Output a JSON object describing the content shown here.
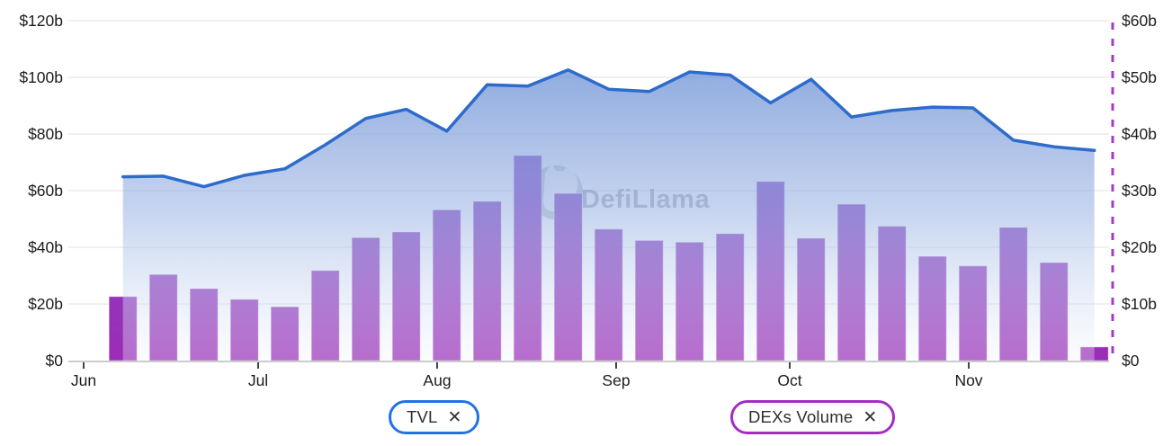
{
  "watermark": {
    "text": "DefiLlama"
  },
  "legend": [
    {
      "label": "TVL",
      "close_icon": "✕",
      "color": "#2172e5"
    },
    {
      "label": "DEXs Volume",
      "close_icon": "✕",
      "color": "#a32cc4"
    }
  ],
  "chart_data": {
    "type": "combo (area line + bar)",
    "x_tick_labels": [
      "Jun",
      "Jul",
      "Aug",
      "Sep",
      "Oct",
      "Nov"
    ],
    "left_axis": {
      "tick_labels": [
        "$120b",
        "$100b",
        "$80b",
        "$60b",
        "$40b",
        "$20b",
        "$0"
      ],
      "min": 0,
      "max": 120,
      "unit": "$ billions",
      "series": "TVL"
    },
    "right_axis": {
      "tick_labels": [
        "$60b",
        "$50b",
        "$40b",
        "$30b",
        "$20b",
        "$10b",
        "$0"
      ],
      "min": 0,
      "max": 60,
      "unit": "$ billions",
      "series": "DEXs Volume"
    },
    "grid": true,
    "legend_position": "bottom",
    "series": [
      {
        "name": "TVL",
        "type": "area",
        "axis": "left",
        "line_color": "#2e6bcb",
        "values_billion": [
          64.9,
          65.1,
          61.4,
          65.4,
          67.7,
          76.2,
          85.5,
          88.7,
          81.0,
          97.4,
          96.9,
          102.6,
          95.8,
          95.0,
          101.9,
          100.8,
          91.0,
          99.3,
          86.0,
          88.3,
          89.5,
          89.2,
          77.8,
          75.5,
          74.2
        ]
      },
      {
        "name": "DEXs Volume",
        "type": "bar",
        "axis": "right",
        "bar_color_top": "#6f55cb",
        "bar_color_bottom": "#9c2cb6",
        "axis_line_color": "#a53ac4",
        "values_billion": [
          11.3,
          15.2,
          12.7,
          10.8,
          9.5,
          15.9,
          21.7,
          22.7,
          26.6,
          28.1,
          36.2,
          29.5,
          23.2,
          21.2,
          20.9,
          22.4,
          31.6,
          21.6,
          27.6,
          23.7,
          18.4,
          16.7,
          23.5,
          17.3,
          2.4
        ]
      }
    ]
  }
}
